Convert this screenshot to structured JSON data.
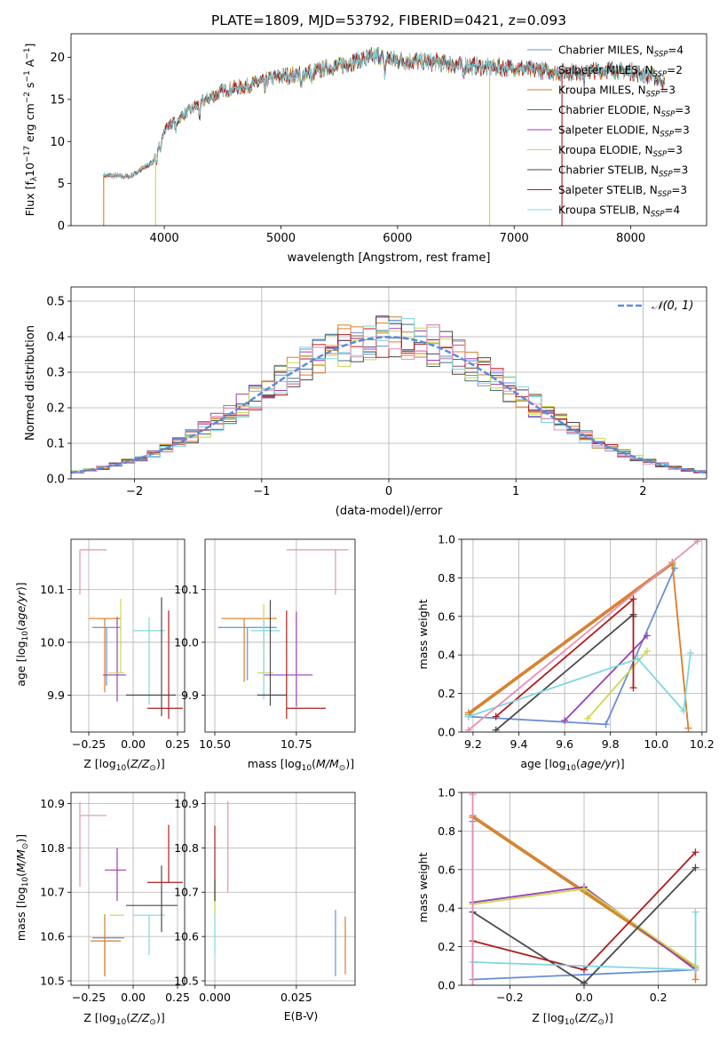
{
  "chart_data": [
    {
      "id": "spectrum",
      "type": "line",
      "title": "PLATE=1809, MJD=53792, FIBERID=0421, z=0.093",
      "xlabel": "wavelength [Angstrom, rest frame]",
      "ylabel": "Flux [fλ10⁻¹⁷ erg cm⁻² s⁻¹ A⁻¹]",
      "xlim": [
        3200,
        8650
      ],
      "ylim": [
        0,
        22.8
      ],
      "xticks": [
        4000,
        5000,
        6000,
        7000,
        8000
      ],
      "yticks": [
        0,
        5,
        10,
        15,
        20
      ],
      "grid": false,
      "legend_position": "top-right",
      "continuum": [
        [
          3480,
          6.0
        ],
        [
          3700,
          5.8
        ],
        [
          3900,
          7.5
        ],
        [
          4000,
          11.5
        ],
        [
          4150,
          13.0
        ],
        [
          4300,
          14.5
        ],
        [
          4500,
          16.0
        ],
        [
          4700,
          16.6
        ],
        [
          4900,
          17.5
        ],
        [
          5100,
          17.9
        ],
        [
          5300,
          18.4
        ],
        [
          5500,
          19.0
        ],
        [
          5700,
          19.7
        ],
        [
          5850,
          20.2
        ],
        [
          6000,
          19.6
        ],
        [
          6200,
          19.5
        ],
        [
          6400,
          19.3
        ],
        [
          6600,
          19.0
        ],
        [
          6800,
          18.8
        ],
        [
          7000,
          18.7
        ],
        [
          7200,
          18.5
        ],
        [
          7400,
          18.2
        ],
        [
          7600,
          18.3
        ],
        [
          7800,
          18.5
        ],
        [
          8000,
          18.3
        ],
        [
          8200,
          17.7
        ],
        [
          8290,
          17.0
        ]
      ],
      "dips": [
        [
          3933,
          0.85
        ],
        [
          3968,
          0.85
        ],
        [
          4101,
          0.92
        ],
        [
          4304,
          0.9
        ],
        [
          4861,
          0.93
        ],
        [
          5175,
          0.9
        ],
        [
          5270,
          0.94
        ],
        [
          5890,
          0.9
        ],
        [
          6563,
          0.95
        ],
        [
          7600,
          0.95
        ]
      ],
      "drops": [
        [
          3480,
          "Salpeter MILES"
        ],
        [
          3925,
          "Kroupa ELODIE"
        ],
        [
          6790,
          "Kroupa ELODIE"
        ],
        [
          7410,
          "Salpeter STELIB"
        ]
      ],
      "series": [
        {
          "name": "Chabrier MILES, Nₛₛₚ=4",
          "color": "#6a8fd6",
          "legend_text": "Chabrier MILES, N",
          "legend_sub": "SSP",
          "legend_tail": "=4"
        },
        {
          "name": "Salpeter MILES, Nₛₛₚ=2",
          "color": "#e07b28",
          "legend_text": "Salpeter MILES, N",
          "legend_sub": "SSP",
          "legend_tail": "=2"
        },
        {
          "name": "Kroupa MILES, Nₛₛₚ=3",
          "color": "#c8832a",
          "legend_text": "Kroupa MILES, N",
          "legend_sub": "SSP",
          "legend_tail": "=3"
        },
        {
          "name": "Chabrier ELODIE, Nₛₛₚ=3",
          "color": "#44737a",
          "legend_text": "Chabrier ELODIE, N",
          "legend_sub": "SSP",
          "legend_tail": "=3"
        },
        {
          "name": "Salpeter ELODIE, Nₛₛₚ=3",
          "color": "#9a3fb8",
          "legend_text": "Salpeter ELODIE, N",
          "legend_sub": "SSP",
          "legend_tail": "=3"
        },
        {
          "name": "Kroupa ELODIE, Nₛₛₚ=3",
          "color": "#c9d94c",
          "legend_text": "Kroupa ELODIE, N",
          "legend_sub": "SSP",
          "legend_tail": "=3"
        },
        {
          "name": "Chabrier STELIB, Nₛₛₚ=3",
          "color": "#4a4a4a",
          "legend_text": "Chabrier STELIB, N",
          "legend_sub": "SSP",
          "legend_tail": "=3"
        },
        {
          "name": "Salpeter STELIB, Nₛₛₚ=3",
          "color": "#b01c1c",
          "legend_text": "Salpeter STELIB, N",
          "legend_sub": "SSP",
          "legend_tail": "=3"
        },
        {
          "name": "Kroupa STELIB, Nₛₛₚ=4",
          "color": "#7fd8e0",
          "legend_text": "Kroupa STELIB, N",
          "legend_sub": "SSP",
          "legend_tail": "=4"
        }
      ]
    },
    {
      "id": "residuals",
      "type": "histogram",
      "xlabel": "(data-model)/error",
      "ylabel": "Normed distribution",
      "xlim": [
        -2.5,
        2.5
      ],
      "ylim": [
        0,
        0.54
      ],
      "xticks": [
        -2,
        -1,
        0,
        1,
        2
      ],
      "yticks": [
        0.0,
        0.1,
        0.2,
        0.3,
        0.4,
        0.5
      ],
      "grid": true,
      "legend_position": "top-right",
      "legend": [
        {
          "label": "𝒩(0, 1)",
          "style": "dashed",
          "color": "#5b8bd9"
        }
      ],
      "bin_width": 0.1,
      "colors": [
        "#6a8fd6",
        "#e07b28",
        "#c8832a",
        "#44737a",
        "#9a3fb8",
        "#c9d94c",
        "#4a4a4a",
        "#b01c1c",
        "#7fd8e0",
        "#e58fb8"
      ]
    },
    {
      "id": "age_vs_Z",
      "type": "errorbar",
      "xlabel": "Z [log₁₀(Z/Z⊙)]",
      "ylabel": "age  [log₁₀(age/yr)]",
      "xlim": [
        -0.35,
        0.29
      ],
      "ylim": [
        9.83,
        10.195
      ],
      "xticks": [
        -0.25,
        0.0,
        0.25
      ],
      "xticklabels": [
        "−0.25",
        "0.00",
        "0.25"
      ],
      "yticks": [
        9.9,
        10.0,
        10.1
      ],
      "grid": true,
      "points": [
        {
          "x": -0.3,
          "xerr": [
            0.0,
            0.15
          ],
          "y": 10.175,
          "yerr": [
            0.085,
            0.0
          ],
          "color": "#e58fb8"
        },
        {
          "x": -0.16,
          "xerr": [
            0.09,
            0.09
          ],
          "y": 10.045,
          "yerr": [
            0.14,
            0.0
          ],
          "color": "#e07b28"
        },
        {
          "x": -0.15,
          "xerr": [
            0.08,
            0.08
          ],
          "y": 10.028,
          "yerr": [
            0.11,
            0.0
          ],
          "color": "#6a8fd6"
        },
        {
          "x": -0.09,
          "xerr": [
            0.08,
            0.05
          ],
          "y": 9.938,
          "yerr": [
            0.05,
            0.11
          ],
          "color": "#9a3fb8"
        },
        {
          "x": -0.07,
          "xerr": [
            0.07,
            0.02
          ],
          "y": 9.942,
          "yerr": [
            0.0,
            0.14
          ],
          "color": "#c9d94c"
        },
        {
          "x": 0.09,
          "xerr": [
            0.09,
            0.09
          ],
          "y": 10.022,
          "yerr": [
            0.14,
            0.025
          ],
          "color": "#7fd8e0"
        },
        {
          "x": 0.16,
          "xerr": [
            0.2,
            0.08
          ],
          "y": 9.9,
          "yerr": [
            0.04,
            0.185
          ],
          "color": "#4a4a4a"
        },
        {
          "x": 0.2,
          "xerr": [
            0.12,
            0.08
          ],
          "y": 9.875,
          "yerr": [
            0.02,
            0.185
          ],
          "color": "#b01c1c"
        }
      ]
    },
    {
      "id": "age_vs_mass",
      "type": "errorbar",
      "xlabel": "mass [log₁₀(M/M⊙)]",
      "ylabel": "",
      "xlim": [
        10.47,
        10.93
      ],
      "ylim": [
        9.83,
        10.195
      ],
      "xticks": [
        10.5,
        10.75
      ],
      "xticklabels": [
        "10.50",
        "10.75"
      ],
      "yticks": [
        9.9,
        10.0,
        10.1
      ],
      "grid": true,
      "points": [
        {
          "x": 10.87,
          "xerr": [
            0.15,
            0.04
          ],
          "y": 10.175,
          "yerr": [
            0.085,
            0.0
          ],
          "color": "#e58fb8"
        },
        {
          "x": 10.59,
          "xerr": [
            0.07,
            0.1
          ],
          "y": 10.045,
          "yerr": [
            0.12,
            0.0
          ],
          "color": "#e07b28"
        },
        {
          "x": 10.6,
          "xerr": [
            0.09,
            0.09
          ],
          "y": 10.028,
          "yerr": [
            0.1,
            0.0
          ],
          "color": "#6a8fd6"
        },
        {
          "x": 10.75,
          "xerr": [
            0.1,
            0.05
          ],
          "y": 9.938,
          "yerr": [
            0.06,
            0.12
          ],
          "color": "#9a3fb8"
        },
        {
          "x": 10.65,
          "xerr": [
            0.02,
            0.03
          ],
          "y": 9.942,
          "yerr": [
            0.0,
            0.13
          ],
          "color": "#c9d94c"
        },
        {
          "x": 10.65,
          "xerr": [
            0.04,
            0.05
          ],
          "y": 10.022,
          "yerr": [
            0.13,
            0.02
          ],
          "color": "#7fd8e0"
        },
        {
          "x": 10.67,
          "xerr": [
            0.04,
            0.05
          ],
          "y": 9.9,
          "yerr": [
            0.02,
            0.18
          ],
          "color": "#4a4a4a"
        },
        {
          "x": 10.72,
          "xerr": [
            0.0,
            0.12
          ],
          "y": 9.875,
          "yerr": [
            0.02,
            0.185
          ],
          "color": "#b01c1c"
        }
      ]
    },
    {
      "id": "weight_vs_age",
      "type": "line",
      "xlabel": "age  [log₁₀(age/yr)]",
      "ylabel": "mass weight",
      "xlim": [
        9.15,
        10.22
      ],
      "ylim": [
        0,
        1.0
      ],
      "xticks": [
        9.2,
        9.4,
        9.6,
        9.8,
        10.0,
        10.2
      ],
      "xticklabels": [
        "9.2",
        "9.4",
        "9.6",
        "9.8",
        "10.0",
        "10.2"
      ],
      "yticks": [
        0.0,
        0.2,
        0.4,
        0.6,
        0.8,
        1.0
      ],
      "grid": true,
      "series": [
        {
          "color": "#6a8fd6",
          "x": [
            9.18,
            9.78,
            10.08
          ],
          "y": [
            0.08,
            0.04,
            0.85
          ]
        },
        {
          "color": "#e07b28",
          "x": [
            9.18,
            10.07,
            10.14
          ],
          "y": [
            0.1,
            0.88,
            0.02
          ]
        },
        {
          "color": "#c8832a",
          "x": [
            9.18,
            10.07
          ],
          "y": [
            0.09,
            0.87
          ]
        },
        {
          "color": "#9a3fb8",
          "x": [
            9.6,
            9.96
          ],
          "y": [
            0.06,
            0.5
          ]
        },
        {
          "color": "#c9d94c",
          "x": [
            9.7,
            9.96
          ],
          "y": [
            0.07,
            0.42
          ]
        },
        {
          "color": "#4a4a4a",
          "x": [
            9.3,
            9.9,
            9.9
          ],
          "y": [
            0.01,
            0.61,
            0.6
          ]
        },
        {
          "color": "#b01c1c",
          "x": [
            9.3,
            9.9,
            9.9
          ],
          "y": [
            0.08,
            0.69,
            0.23
          ]
        },
        {
          "color": "#7fd8e0",
          "x": [
            9.18,
            9.92,
            10.12,
            10.15
          ],
          "y": [
            0.08,
            0.38,
            0.11,
            0.41
          ]
        },
        {
          "color": "#e58fb8",
          "x": [
            9.18,
            10.18
          ],
          "y": [
            0.01,
            0.99
          ]
        }
      ]
    },
    {
      "id": "mass_vs_Z",
      "type": "errorbar",
      "xlabel": "Z [log₁₀(Z/Z⊙)]",
      "ylabel": "mass [log₁₀(M/M⊙)]",
      "xlim": [
        -0.35,
        0.29
      ],
      "ylim": [
        10.49,
        10.925
      ],
      "xticks": [
        -0.25,
        0.0,
        0.25
      ],
      "xticklabels": [
        "−0.25",
        "0.00",
        "0.25"
      ],
      "yticks": [
        10.5,
        10.6,
        10.7,
        10.8,
        10.9
      ],
      "grid": true,
      "points": [
        {
          "x": -0.3,
          "xerr": [
            0.0,
            0.15
          ],
          "y": 10.873,
          "yerr": [
            0.16,
            0.03
          ],
          "color": "#e58fb8"
        },
        {
          "x": -0.09,
          "xerr": [
            0.07,
            0.05
          ],
          "y": 10.75,
          "yerr": [
            0.07,
            0.05
          ],
          "color": "#9a3fb8"
        },
        {
          "x": -0.16,
          "xerr": [
            0.08,
            0.09
          ],
          "y": 10.59,
          "yerr": [
            0.08,
            0.0
          ],
          "color": "#e07b28"
        },
        {
          "x": -0.15,
          "xerr": [
            0.08,
            0.1
          ],
          "y": 10.597,
          "yerr": [
            0.0,
            0.0
          ],
          "color": "#6a8fd6"
        },
        {
          "x": -0.07,
          "xerr": [
            0.06,
            0.02
          ],
          "y": 10.648,
          "yerr": [
            0.0,
            0.0
          ],
          "color": "#c9d94c"
        },
        {
          "x": 0.09,
          "xerr": [
            0.09,
            0.09
          ],
          "y": 10.648,
          "yerr": [
            0.09,
            0.0
          ],
          "color": "#7fd8e0"
        },
        {
          "x": 0.16,
          "xerr": [
            0.2,
            0.09
          ],
          "y": 10.67,
          "yerr": [
            0.06,
            0.09
          ],
          "color": "#4a4a4a"
        },
        {
          "x": 0.2,
          "xerr": [
            0.12,
            0.08
          ],
          "y": 10.722,
          "yerr": [
            0.0,
            0.13
          ],
          "color": "#b01c1c"
        },
        {
          "x": -0.16,
          "xerr": [
            0.0,
            0.0
          ],
          "y": 10.6,
          "yerr": [
            0.09,
            0.05
          ],
          "color": "#c8832a"
        }
      ]
    },
    {
      "id": "mass_vs_EBV",
      "type": "errorbar",
      "xlabel": "E(B-V)",
      "ylabel": "",
      "xlim": [
        -0.003,
        0.043
      ],
      "ylim": [
        10.49,
        10.925
      ],
      "xticks": [
        0.0,
        0.025
      ],
      "xticklabels": [
        "0.000",
        "0.025"
      ],
      "yticks": [
        10.5,
        10.6,
        10.7,
        10.8,
        10.9
      ],
      "grid": true,
      "points": [
        {
          "x": 0.004,
          "xerr": [
            0.0,
            0.0
          ],
          "y": 10.8,
          "yerr": [
            0.1,
            0.105
          ],
          "color": "#e58fb8"
        },
        {
          "x": 0.0,
          "xerr": [
            0.0,
            0.0
          ],
          "y": 10.73,
          "yerr": [
            0.05,
            0.12
          ],
          "color": "#b01c1c"
        },
        {
          "x": 0.0,
          "xerr": [
            0.0,
            0.0
          ],
          "y": 10.65,
          "yerr": [
            0.09,
            0.04
          ],
          "color": "#7fd8e0"
        },
        {
          "x": 0.0,
          "xerr": [
            0.0,
            0.0
          ],
          "y": 10.68,
          "yerr": [
            0.03,
            0.05
          ],
          "color": "#c9d94c"
        },
        {
          "x": 0.0,
          "xerr": [
            0.0,
            0.0
          ],
          "y": 10.7,
          "yerr": [
            0.02,
            0.03
          ],
          "color": "#4a4a4a"
        },
        {
          "x": 0.037,
          "xerr": [
            0.0,
            0.0
          ],
          "y": 10.6,
          "yerr": [
            0.09,
            0.06
          ],
          "color": "#6a8fd6"
        },
        {
          "x": 0.04,
          "xerr": [
            0.0,
            0.0
          ],
          "y": 10.58,
          "yerr": [
            0.065,
            0.065
          ],
          "color": "#e07b28"
        }
      ]
    },
    {
      "id": "weight_vs_Z",
      "type": "line",
      "xlabel": "Z [log₁₀(Z/Z⊙)]",
      "ylabel": "mass weight",
      "xlim": [
        -0.33,
        0.33
      ],
      "ylim": [
        0,
        1.0
      ],
      "xticks": [
        -0.2,
        0.0,
        0.2
      ],
      "xticklabels": [
        "−0.2",
        "0.0",
        "0.2"
      ],
      "yticks": [
        0.0,
        0.2,
        0.4,
        0.6,
        0.8,
        1.0
      ],
      "grid": true,
      "series": [
        {
          "color": "#6a8fd6",
          "x": [
            -0.3,
            -0.3,
            0.3
          ],
          "y": [
            0.85,
            0.03,
            0.08
          ]
        },
        {
          "color": "#e07b28",
          "x": [
            -0.3,
            0.3,
            0.3
          ],
          "y": [
            0.88,
            0.1,
            0.03
          ]
        },
        {
          "color": "#c8832a",
          "x": [
            -0.3,
            0.3
          ],
          "y": [
            0.87,
            0.09
          ]
        },
        {
          "color": "#9a3fb8",
          "x": [
            -0.3,
            0.0,
            0.3
          ],
          "y": [
            0.43,
            0.51,
            0.08
          ]
        },
        {
          "color": "#c9d94c",
          "x": [
            -0.3,
            0.0,
            0.3
          ],
          "y": [
            0.42,
            0.5,
            0.1
          ]
        },
        {
          "color": "#4a4a4a",
          "x": [
            -0.3,
            0.0,
            0.3
          ],
          "y": [
            0.38,
            0.01,
            0.61
          ]
        },
        {
          "color": "#b01c1c",
          "x": [
            -0.3,
            0.0,
            0.3
          ],
          "y": [
            0.23,
            0.08,
            0.69
          ]
        },
        {
          "color": "#7fd8e0",
          "x": [
            -0.3,
            0.3,
            0.3
          ],
          "y": [
            0.12,
            0.08,
            0.38
          ]
        },
        {
          "color": "#e58fb8",
          "x": [
            -0.3,
            -0.3
          ],
          "y": [
            0.0,
            0.99
          ]
        }
      ]
    }
  ]
}
